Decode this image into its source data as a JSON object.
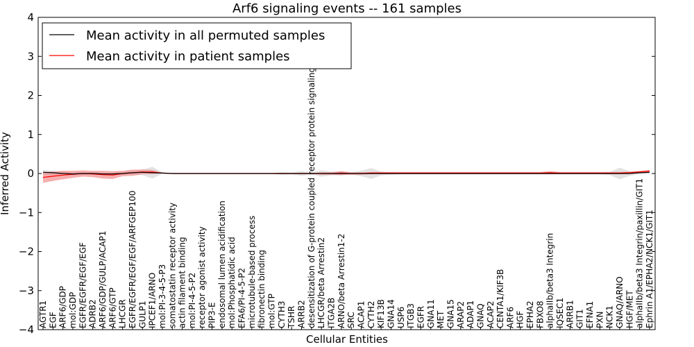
{
  "chart_data": {
    "type": "line",
    "title": "Arf6 signaling events -- 161 samples",
    "xlabel": "Cellular Entities",
    "ylabel": "Inferred Activity",
    "ylim": [
      -4,
      4
    ],
    "yticks": [
      -4,
      -3,
      -2,
      -1,
      0,
      1,
      2,
      3,
      4
    ],
    "grid": false,
    "legend_position": "top-left",
    "categories": [
      "AGTR1",
      "EGF",
      "ARF6/GDP",
      "mol:GDP",
      "EGFR/EGFR/EGF/EGF",
      "ADRB2",
      "ARF6/GDP/GULP/ACAP1",
      "ARF6/GTP",
      "LHCGR",
      "EGFR/EGFR/EGF/EGF/ARFGEP100",
      "GULP1",
      "IPCEF1/ARNO",
      "mol:PI-3-4-5-P3",
      "somatostatin receptor activity",
      "actin filament binding",
      "mol:PI-4-5-P2",
      "receptor agonist activity",
      "PIP3-E",
      "endosomal lumen acidification",
      "mol:Phosphatidic acid",
      "EFA6/PI-4-5-P2",
      "microtubule-based process",
      "fibronectin binding",
      "mol:GTP",
      "CYTH3",
      "TSHR",
      "ARRB2",
      "desensitization of G-protein coupled receptor protein signaling pathway",
      "LHCGR/beta Arrestin2",
      "ITGA2B",
      "ARNO/beta Arrestin1-2",
      "SRC",
      "ACAP1",
      "CYTH2",
      "KIF13B",
      "GNA14",
      "USP6",
      "ITGB3",
      "EGFR",
      "GNA11",
      "MET",
      "GNA15",
      "ARAP2",
      "ADAP1",
      "GNAQ",
      "ACAP2",
      "CENTA1/KIF3B",
      "ARF6",
      "HGF",
      "EPHA2",
      "FBXO8",
      "alphaIIb/beta3 Integrin",
      "IQSEC1",
      "ARRB1",
      "GIT1",
      "EFNA1",
      "PXN",
      "NCK1",
      "GNAQ/ARNO",
      "HGF/MET",
      "alphaIIb/beta3 Integrin/paxillin/GIT1",
      "Ephrin A1/EPHA2/NCK1/GIT1"
    ],
    "series": [
      {
        "name": "Mean activity in all permuted samples",
        "color": "#000000",
        "band_color": "#c8c8c8",
        "values": [
          0.03,
          0.02,
          0.0,
          -0.01,
          0.0,
          0.0,
          -0.01,
          -0.01,
          0.0,
          0.02,
          0.03,
          0.02,
          0.01,
          0.0,
          0.0,
          0.0,
          0.0,
          0.0,
          0.0,
          0.0,
          0.0,
          0.0,
          0.0,
          0.0,
          0.0,
          0.0,
          0.0,
          0.0,
          0.0,
          0.0,
          0.0,
          0.0,
          0.0,
          0.0,
          0.0,
          0.0,
          0.0,
          0.0,
          0.0,
          0.0,
          0.0,
          0.0,
          0.0,
          0.0,
          0.0,
          0.0,
          0.0,
          0.0,
          0.0,
          0.0,
          0.0,
          0.0,
          0.0,
          0.0,
          0.0,
          0.0,
          0.0,
          0.0,
          0.0,
          0.0,
          0.02,
          0.03
        ],
        "band": [
          0.06,
          0.05,
          0.05,
          0.04,
          0.04,
          0.03,
          0.03,
          0.03,
          0.04,
          0.05,
          0.07,
          0.15,
          0.02,
          0.01,
          0.01,
          0.01,
          0.01,
          0.01,
          0.01,
          0.01,
          0.01,
          0.01,
          0.01,
          0.01,
          0.03,
          0.03,
          0.06,
          0.03,
          0.08,
          0.05,
          0.05,
          0.03,
          0.07,
          0.14,
          0.05,
          0.03,
          0.02,
          0.02,
          0.02,
          0.02,
          0.02,
          0.02,
          0.02,
          0.02,
          0.02,
          0.02,
          0.02,
          0.02,
          0.02,
          0.02,
          0.02,
          0.02,
          0.02,
          0.02,
          0.02,
          0.02,
          0.02,
          0.04,
          0.15,
          0.06,
          0.04,
          0.04
        ]
      },
      {
        "name": "Mean activity in patient samples",
        "color": "#ff0000",
        "band_color": "#f07878",
        "values": [
          -0.1,
          -0.07,
          -0.04,
          -0.02,
          0.0,
          -0.01,
          -0.03,
          -0.04,
          0.0,
          0.02,
          0.04,
          0.04,
          0.01,
          0.0,
          0.0,
          0.0,
          0.0,
          0.0,
          0.0,
          0.0,
          0.0,
          0.0,
          0.0,
          0.0,
          0.0,
          0.0,
          0.0,
          0.0,
          0.0,
          0.0,
          0.01,
          0.0,
          0.0,
          0.01,
          0.01,
          0.01,
          0.01,
          0.01,
          0.01,
          0.01,
          0.01,
          0.01,
          0.01,
          0.01,
          0.01,
          0.01,
          0.01,
          0.01,
          0.01,
          0.01,
          0.01,
          0.02,
          0.01,
          0.01,
          0.01,
          0.01,
          0.01,
          0.01,
          0.01,
          0.02,
          0.04,
          0.06
        ],
        "band": [
          0.14,
          0.12,
          0.11,
          0.09,
          0.08,
          0.08,
          0.1,
          0.1,
          0.07,
          0.08,
          0.06,
          0.05,
          0.01,
          0.01,
          0.01,
          0.01,
          0.01,
          0.01,
          0.01,
          0.01,
          0.01,
          0.01,
          0.01,
          0.01,
          0.02,
          0.01,
          0.02,
          0.01,
          0.03,
          0.03,
          0.05,
          0.03,
          0.03,
          0.03,
          0.03,
          0.03,
          0.03,
          0.03,
          0.03,
          0.03,
          0.03,
          0.03,
          0.03,
          0.03,
          0.03,
          0.03,
          0.03,
          0.03,
          0.03,
          0.03,
          0.03,
          0.04,
          0.03,
          0.03,
          0.03,
          0.03,
          0.03,
          0.03,
          0.03,
          0.03,
          0.03,
          0.03
        ]
      }
    ]
  }
}
